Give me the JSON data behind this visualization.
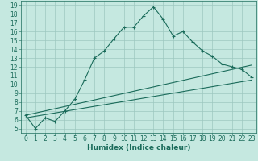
{
  "xlabel": "Humidex (Indice chaleur)",
  "bg_color": "#c5e8e0",
  "line_color": "#1a6b5a",
  "grid_color": "#9dc8c0",
  "xlim": [
    -0.5,
    23.5
  ],
  "ylim": [
    4.5,
    19.5
  ],
  "xticks": [
    0,
    1,
    2,
    3,
    4,
    5,
    6,
    7,
    8,
    9,
    10,
    11,
    12,
    13,
    14,
    15,
    16,
    17,
    18,
    19,
    20,
    21,
    22,
    23
  ],
  "yticks": [
    5,
    6,
    7,
    8,
    9,
    10,
    11,
    12,
    13,
    14,
    15,
    16,
    17,
    18,
    19
  ],
  "line1_x": [
    0,
    1,
    2,
    3,
    4,
    5,
    6,
    7,
    8,
    9,
    10,
    11,
    12,
    13,
    14,
    15,
    16,
    17,
    18,
    19,
    20,
    21,
    22,
    23
  ],
  "line1_y": [
    6.5,
    5.0,
    6.2,
    5.8,
    7.0,
    8.3,
    10.5,
    13.0,
    13.8,
    15.2,
    16.5,
    16.5,
    17.8,
    18.8,
    17.4,
    15.5,
    16.0,
    14.8,
    13.8,
    13.2,
    12.3,
    12.0,
    11.7,
    10.8
  ],
  "line2_x": [
    0,
    23
  ],
  "line2_y": [
    6.2,
    10.5
  ],
  "line3_x": [
    0,
    23
  ],
  "line3_y": [
    6.5,
    12.2
  ],
  "tick_fontsize": 5.5,
  "label_fontsize": 6.5
}
